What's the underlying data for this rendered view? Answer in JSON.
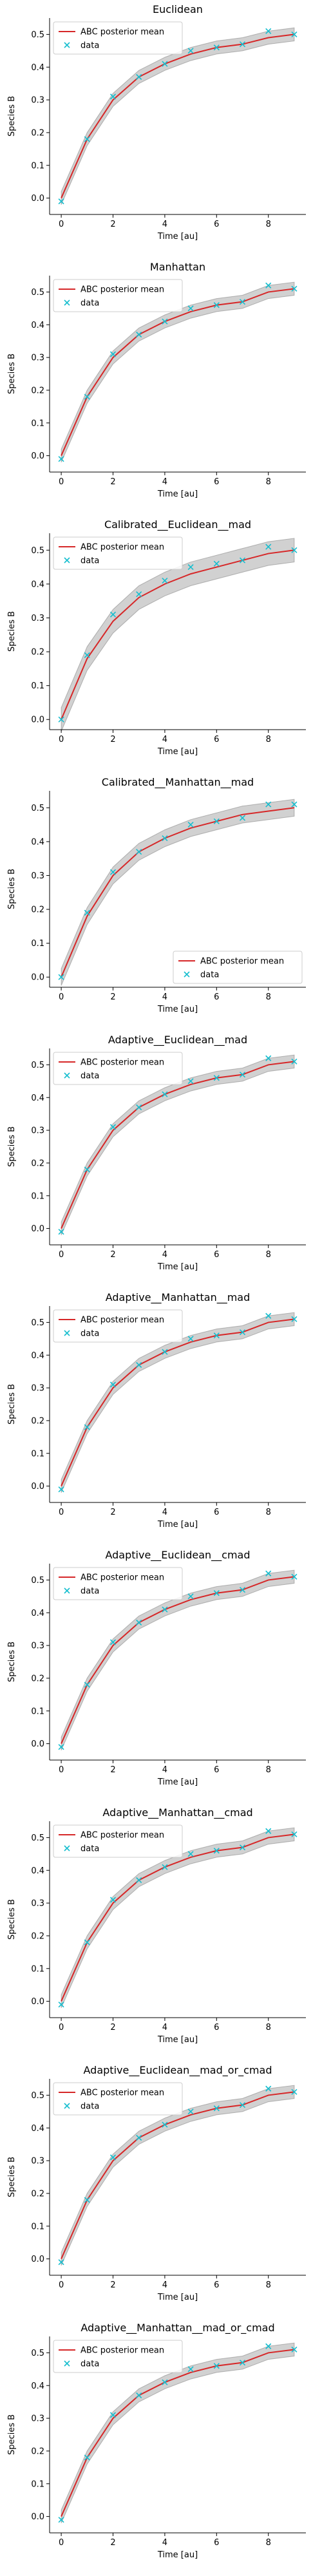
{
  "chart_data": [
    {
      "type": "line",
      "title": "Euclidean",
      "xlabel": "Time [au]",
      "ylabel": "Species B",
      "xlim": [
        -0.45,
        9.45
      ],
      "ylim": [
        -0.05,
        0.55
      ],
      "xticks": [
        0,
        2,
        4,
        6,
        8
      ],
      "yticks": [
        0.0,
        0.1,
        0.2,
        0.3,
        0.4,
        0.5
      ],
      "ytick_labels": [
        "0.0",
        "0.1",
        "0.2",
        "0.3",
        "0.4",
        "0.5"
      ],
      "legend_position": "upper left",
      "posterior_band_halfwidth": 0.02,
      "series": [
        {
          "name": "ABC posterior mean",
          "kind": "line",
          "color": "#d62728",
          "x": [
            0,
            1,
            2,
            3,
            4,
            5,
            6,
            7,
            8,
            9
          ],
          "y": [
            0.0,
            0.18,
            0.3,
            0.37,
            0.41,
            0.44,
            0.46,
            0.47,
            0.49,
            0.5
          ]
        },
        {
          "name": "data",
          "kind": "marker",
          "marker": "x",
          "color": "#17becf",
          "x": [
            0,
            1,
            2,
            3,
            4,
            5,
            6,
            7,
            8,
            9
          ],
          "y": [
            -0.01,
            0.18,
            0.31,
            0.37,
            0.41,
            0.45,
            0.46,
            0.47,
            0.51,
            0.5
          ]
        }
      ]
    },
    {
      "type": "line",
      "title": "Manhattan",
      "xlabel": "Time [au]",
      "ylabel": "Species B",
      "xlim": [
        -0.45,
        9.45
      ],
      "ylim": [
        -0.05,
        0.55
      ],
      "xticks": [
        0,
        2,
        4,
        6,
        8
      ],
      "yticks": [
        0.0,
        0.1,
        0.2,
        0.3,
        0.4,
        0.5
      ],
      "ytick_labels": [
        "0.0",
        "0.1",
        "0.2",
        "0.3",
        "0.4",
        "0.5"
      ],
      "legend_position": "upper left",
      "posterior_band_halfwidth": 0.02,
      "series": [
        {
          "name": "ABC posterior mean",
          "kind": "line",
          "color": "#d62728",
          "x": [
            0,
            1,
            2,
            3,
            4,
            5,
            6,
            7,
            8,
            9
          ],
          "y": [
            0.0,
            0.18,
            0.3,
            0.37,
            0.41,
            0.44,
            0.46,
            0.47,
            0.5,
            0.51
          ]
        },
        {
          "name": "data",
          "kind": "marker",
          "marker": "x",
          "color": "#17becf",
          "x": [
            0,
            1,
            2,
            3,
            4,
            5,
            6,
            7,
            8,
            9
          ],
          "y": [
            -0.01,
            0.18,
            0.31,
            0.37,
            0.41,
            0.45,
            0.46,
            0.47,
            0.52,
            0.51
          ]
        }
      ]
    },
    {
      "type": "line",
      "title": "Calibrated__Euclidean__mad",
      "xlabel": "Time [au]",
      "ylabel": "Species B",
      "xlim": [
        -0.45,
        9.45
      ],
      "ylim": [
        -0.03,
        0.55
      ],
      "xticks": [
        0,
        2,
        4,
        6,
        8
      ],
      "yticks": [
        0.0,
        0.1,
        0.2,
        0.3,
        0.4,
        0.5
      ],
      "ytick_labels": [
        "0.0",
        "0.1",
        "0.2",
        "0.3",
        "0.4",
        "0.5"
      ],
      "legend_position": "upper left",
      "posterior_band_halfwidth": 0.035,
      "series": [
        {
          "name": "ABC posterior mean",
          "kind": "line",
          "color": "#d62728",
          "x": [
            0,
            1,
            2,
            3,
            4,
            5,
            6,
            7,
            8,
            9
          ],
          "y": [
            0.0,
            0.18,
            0.29,
            0.36,
            0.4,
            0.43,
            0.45,
            0.47,
            0.49,
            0.5
          ]
        },
        {
          "name": "data",
          "kind": "marker",
          "marker": "x",
          "color": "#17becf",
          "x": [
            0,
            1,
            2,
            3,
            4,
            5,
            6,
            7,
            8,
            9
          ],
          "y": [
            0.0,
            0.19,
            0.31,
            0.37,
            0.41,
            0.45,
            0.46,
            0.47,
            0.51,
            0.5
          ]
        }
      ]
    },
    {
      "type": "line",
      "title": "Calibrated__Manhattan__mad",
      "xlabel": "Time [au]",
      "ylabel": "Species B",
      "xlim": [
        -0.45,
        9.45
      ],
      "ylim": [
        -0.03,
        0.55
      ],
      "xticks": [
        0,
        2,
        4,
        6,
        8
      ],
      "yticks": [
        0.0,
        0.1,
        0.2,
        0.3,
        0.4,
        0.5
      ],
      "ytick_labels": [
        "0.0",
        "0.1",
        "0.2",
        "0.3",
        "0.4",
        "0.5"
      ],
      "legend_position": "lower right",
      "posterior_band_halfwidth": 0.025,
      "series": [
        {
          "name": "ABC posterior mean",
          "kind": "line",
          "color": "#d62728",
          "x": [
            0,
            1,
            2,
            3,
            4,
            5,
            6,
            7,
            8,
            9
          ],
          "y": [
            0.0,
            0.18,
            0.3,
            0.37,
            0.41,
            0.44,
            0.46,
            0.48,
            0.49,
            0.5
          ]
        },
        {
          "name": "data",
          "kind": "marker",
          "marker": "x",
          "color": "#17becf",
          "x": [
            0,
            1,
            2,
            3,
            4,
            5,
            6,
            7,
            8,
            9
          ],
          "y": [
            0.0,
            0.19,
            0.31,
            0.37,
            0.41,
            0.45,
            0.46,
            0.47,
            0.51,
            0.51
          ]
        }
      ]
    },
    {
      "type": "line",
      "title": "Adaptive__Euclidean__mad",
      "xlabel": "Time [au]",
      "ylabel": "Species B",
      "xlim": [
        -0.45,
        9.45
      ],
      "ylim": [
        -0.05,
        0.55
      ],
      "xticks": [
        0,
        2,
        4,
        6,
        8
      ],
      "yticks": [
        0.0,
        0.1,
        0.2,
        0.3,
        0.4,
        0.5
      ],
      "ytick_labels": [
        "0.0",
        "0.1",
        "0.2",
        "0.3",
        "0.4",
        "0.5"
      ],
      "legend_position": "upper left",
      "posterior_band_halfwidth": 0.02,
      "series": [
        {
          "name": "ABC posterior mean",
          "kind": "line",
          "color": "#d62728",
          "x": [
            0,
            1,
            2,
            3,
            4,
            5,
            6,
            7,
            8,
            9
          ],
          "y": [
            0.0,
            0.18,
            0.3,
            0.37,
            0.41,
            0.44,
            0.46,
            0.47,
            0.5,
            0.51
          ]
        },
        {
          "name": "data",
          "kind": "marker",
          "marker": "x",
          "color": "#17becf",
          "x": [
            0,
            1,
            2,
            3,
            4,
            5,
            6,
            7,
            8,
            9
          ],
          "y": [
            -0.01,
            0.18,
            0.31,
            0.37,
            0.41,
            0.45,
            0.46,
            0.47,
            0.52,
            0.51
          ]
        }
      ]
    },
    {
      "type": "line",
      "title": "Adaptive__Manhattan__mad",
      "xlabel": "Time [au]",
      "ylabel": "Species B",
      "xlim": [
        -0.45,
        9.45
      ],
      "ylim": [
        -0.05,
        0.55
      ],
      "xticks": [
        0,
        2,
        4,
        6,
        8
      ],
      "yticks": [
        0.0,
        0.1,
        0.2,
        0.3,
        0.4,
        0.5
      ],
      "ytick_labels": [
        "0.0",
        "0.1",
        "0.2",
        "0.3",
        "0.4",
        "0.5"
      ],
      "legend_position": "upper left",
      "posterior_band_halfwidth": 0.02,
      "series": [
        {
          "name": "ABC posterior mean",
          "kind": "line",
          "color": "#d62728",
          "x": [
            0,
            1,
            2,
            3,
            4,
            5,
            6,
            7,
            8,
            9
          ],
          "y": [
            0.0,
            0.18,
            0.3,
            0.37,
            0.41,
            0.44,
            0.46,
            0.47,
            0.5,
            0.51
          ]
        },
        {
          "name": "data",
          "kind": "marker",
          "marker": "x",
          "color": "#17becf",
          "x": [
            0,
            1,
            2,
            3,
            4,
            5,
            6,
            7,
            8,
            9
          ],
          "y": [
            -0.01,
            0.18,
            0.31,
            0.37,
            0.41,
            0.45,
            0.46,
            0.47,
            0.52,
            0.51
          ]
        }
      ]
    },
    {
      "type": "line",
      "title": "Adaptive__Euclidean__cmad",
      "xlabel": "Time [au]",
      "ylabel": "Species B",
      "xlim": [
        -0.45,
        9.45
      ],
      "ylim": [
        -0.05,
        0.55
      ],
      "xticks": [
        0,
        2,
        4,
        6,
        8
      ],
      "yticks": [
        0.0,
        0.1,
        0.2,
        0.3,
        0.4,
        0.5
      ],
      "ytick_labels": [
        "0.0",
        "0.1",
        "0.2",
        "0.3",
        "0.4",
        "0.5"
      ],
      "legend_position": "upper left",
      "posterior_band_halfwidth": 0.02,
      "series": [
        {
          "name": "ABC posterior mean",
          "kind": "line",
          "color": "#d62728",
          "x": [
            0,
            1,
            2,
            3,
            4,
            5,
            6,
            7,
            8,
            9
          ],
          "y": [
            0.0,
            0.18,
            0.3,
            0.37,
            0.41,
            0.44,
            0.46,
            0.47,
            0.5,
            0.51
          ]
        },
        {
          "name": "data",
          "kind": "marker",
          "marker": "x",
          "color": "#17becf",
          "x": [
            0,
            1,
            2,
            3,
            4,
            5,
            6,
            7,
            8,
            9
          ],
          "y": [
            -0.01,
            0.18,
            0.31,
            0.37,
            0.41,
            0.45,
            0.46,
            0.47,
            0.52,
            0.51
          ]
        }
      ]
    },
    {
      "type": "line",
      "title": "Adaptive__Manhattan__cmad",
      "xlabel": "Time [au]",
      "ylabel": "Species B",
      "xlim": [
        -0.45,
        9.45
      ],
      "ylim": [
        -0.05,
        0.55
      ],
      "xticks": [
        0,
        2,
        4,
        6,
        8
      ],
      "yticks": [
        0.0,
        0.1,
        0.2,
        0.3,
        0.4,
        0.5
      ],
      "ytick_labels": [
        "0.0",
        "0.1",
        "0.2",
        "0.3",
        "0.4",
        "0.5"
      ],
      "legend_position": "upper left",
      "posterior_band_halfwidth": 0.02,
      "series": [
        {
          "name": "ABC posterior mean",
          "kind": "line",
          "color": "#d62728",
          "x": [
            0,
            1,
            2,
            3,
            4,
            5,
            6,
            7,
            8,
            9
          ],
          "y": [
            0.0,
            0.18,
            0.3,
            0.37,
            0.41,
            0.44,
            0.46,
            0.47,
            0.5,
            0.51
          ]
        },
        {
          "name": "data",
          "kind": "marker",
          "marker": "x",
          "color": "#17becf",
          "x": [
            0,
            1,
            2,
            3,
            4,
            5,
            6,
            7,
            8,
            9
          ],
          "y": [
            -0.01,
            0.18,
            0.31,
            0.37,
            0.41,
            0.45,
            0.46,
            0.47,
            0.52,
            0.51
          ]
        }
      ]
    },
    {
      "type": "line",
      "title": "Adaptive__Euclidean__mad_or_cmad",
      "xlabel": "Time [au]",
      "ylabel": "Species B",
      "xlim": [
        -0.45,
        9.45
      ],
      "ylim": [
        -0.05,
        0.55
      ],
      "xticks": [
        0,
        2,
        4,
        6,
        8
      ],
      "yticks": [
        0.0,
        0.1,
        0.2,
        0.3,
        0.4,
        0.5
      ],
      "ytick_labels": [
        "0.0",
        "0.1",
        "0.2",
        "0.3",
        "0.4",
        "0.5"
      ],
      "legend_position": "upper left",
      "posterior_band_halfwidth": 0.02,
      "series": [
        {
          "name": "ABC posterior mean",
          "kind": "line",
          "color": "#d62728",
          "x": [
            0,
            1,
            2,
            3,
            4,
            5,
            6,
            7,
            8,
            9
          ],
          "y": [
            0.0,
            0.18,
            0.3,
            0.37,
            0.41,
            0.44,
            0.46,
            0.47,
            0.5,
            0.51
          ]
        },
        {
          "name": "data",
          "kind": "marker",
          "marker": "x",
          "color": "#17becf",
          "x": [
            0,
            1,
            2,
            3,
            4,
            5,
            6,
            7,
            8,
            9
          ],
          "y": [
            -0.01,
            0.18,
            0.31,
            0.37,
            0.41,
            0.45,
            0.46,
            0.47,
            0.52,
            0.51
          ]
        }
      ]
    },
    {
      "type": "line",
      "title": "Adaptive__Manhattan__mad_or_cmad",
      "xlabel": "Time [au]",
      "ylabel": "Species B",
      "xlim": [
        -0.45,
        9.45
      ],
      "ylim": [
        -0.05,
        0.55
      ],
      "xticks": [
        0,
        2,
        4,
        6,
        8
      ],
      "yticks": [
        0.0,
        0.1,
        0.2,
        0.3,
        0.4,
        0.5
      ],
      "ytick_labels": [
        "0.0",
        "0.1",
        "0.2",
        "0.3",
        "0.4",
        "0.5"
      ],
      "legend_position": "upper left",
      "posterior_band_halfwidth": 0.02,
      "series": [
        {
          "name": "ABC posterior mean",
          "kind": "line",
          "color": "#d62728",
          "x": [
            0,
            1,
            2,
            3,
            4,
            5,
            6,
            7,
            8,
            9
          ],
          "y": [
            0.0,
            0.18,
            0.3,
            0.37,
            0.41,
            0.44,
            0.46,
            0.47,
            0.5,
            0.51
          ]
        },
        {
          "name": "data",
          "kind": "marker",
          "marker": "x",
          "color": "#17becf",
          "x": [
            0,
            1,
            2,
            3,
            4,
            5,
            6,
            7,
            8,
            9
          ],
          "y": [
            -0.01,
            0.18,
            0.31,
            0.37,
            0.41,
            0.45,
            0.46,
            0.47,
            0.52,
            0.51
          ]
        }
      ]
    }
  ]
}
